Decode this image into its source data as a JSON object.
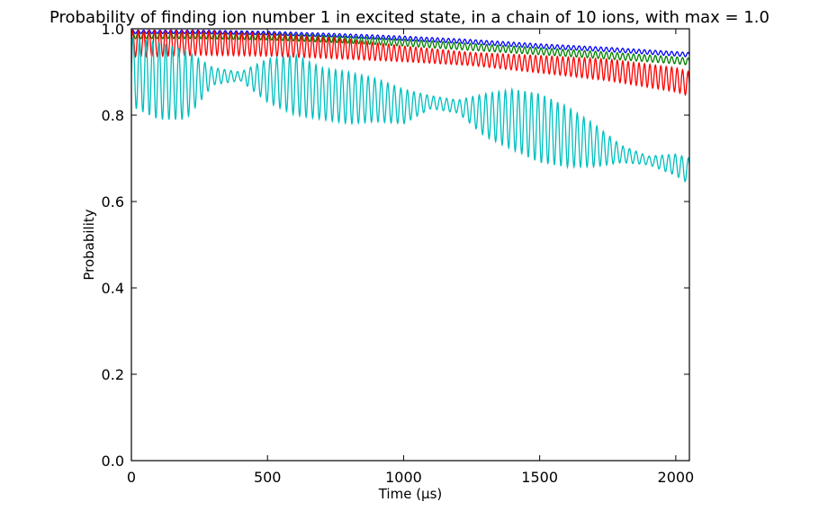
{
  "chart_data": {
    "type": "line",
    "title": "Probability of finding ion number 1 in excited state, in a chain of 10 ions, with max = 1.0",
    "xlabel": "Time (µs)",
    "ylabel": "Probability",
    "xlim": [
      0,
      2050
    ],
    "ylim": [
      0.0,
      1.0
    ],
    "xticks": [
      0,
      500,
      1000,
      1500,
      2000
    ],
    "xtick_labels": [
      "0",
      "500",
      "1000",
      "1500",
      "2000"
    ],
    "yticks": [
      0.0,
      0.2,
      0.4,
      0.6,
      0.8,
      1.0
    ],
    "ytick_labels": [
      "0.0",
      "0.2",
      "0.4",
      "0.6",
      "0.8",
      "1.0"
    ],
    "grid": false,
    "legend": null,
    "series": [
      {
        "color": "#0000ff",
        "x": [
          0,
          250,
          500,
          750,
          1000,
          1250,
          1500,
          1750,
          2000,
          2050
        ],
        "mean": [
          0.993,
          0.993,
          0.99,
          0.985,
          0.978,
          0.97,
          0.96,
          0.952,
          0.942,
          0.94
        ],
        "amplitude": [
          0.004,
          0.004,
          0.004,
          0.004,
          0.005,
          0.005,
          0.005,
          0.005,
          0.005,
          0.005
        ],
        "period": 20
      },
      {
        "color": "#008000",
        "x": [
          0,
          250,
          500,
          750,
          1000,
          1250,
          1500,
          1750,
          2000,
          2050
        ],
        "mean": [
          0.985,
          0.985,
          0.982,
          0.976,
          0.968,
          0.958,
          0.948,
          0.938,
          0.927,
          0.924
        ],
        "amplitude": [
          0.008,
          0.008,
          0.008,
          0.008,
          0.008,
          0.008,
          0.008,
          0.008,
          0.008,
          0.008
        ],
        "period": 20
      },
      {
        "color": "#ff0000",
        "x": [
          0,
          250,
          500,
          750,
          1000,
          1250,
          1500,
          1750,
          2000,
          2050
        ],
        "mean": [
          0.965,
          0.967,
          0.963,
          0.955,
          0.942,
          0.93,
          0.918,
          0.905,
          0.882,
          0.872
        ],
        "amplitude": [
          0.03,
          0.028,
          0.026,
          0.024,
          0.018,
          0.015,
          0.02,
          0.025,
          0.028,
          0.028
        ],
        "period": 20
      },
      {
        "color": "#00bfbf",
        "x": [
          0,
          100,
          200,
          300,
          400,
          500,
          600,
          700,
          800,
          900,
          1000,
          1100,
          1200,
          1300,
          1400,
          1500,
          1600,
          1700,
          1800,
          1900,
          2000,
          2050
        ],
        "mean": [
          0.9,
          0.88,
          0.87,
          0.89,
          0.89,
          0.88,
          0.87,
          0.85,
          0.84,
          0.835,
          0.82,
          0.83,
          0.82,
          0.8,
          0.79,
          0.77,
          0.75,
          0.73,
          0.71,
          0.695,
          0.685,
          0.67
        ],
        "amplitude": [
          0.08,
          0.09,
          0.08,
          0.02,
          0.01,
          0.05,
          0.07,
          0.06,
          0.06,
          0.05,
          0.04,
          0.015,
          0.015,
          0.05,
          0.07,
          0.08,
          0.07,
          0.05,
          0.02,
          0.01,
          0.025,
          0.03
        ],
        "period": 24
      }
    ]
  }
}
